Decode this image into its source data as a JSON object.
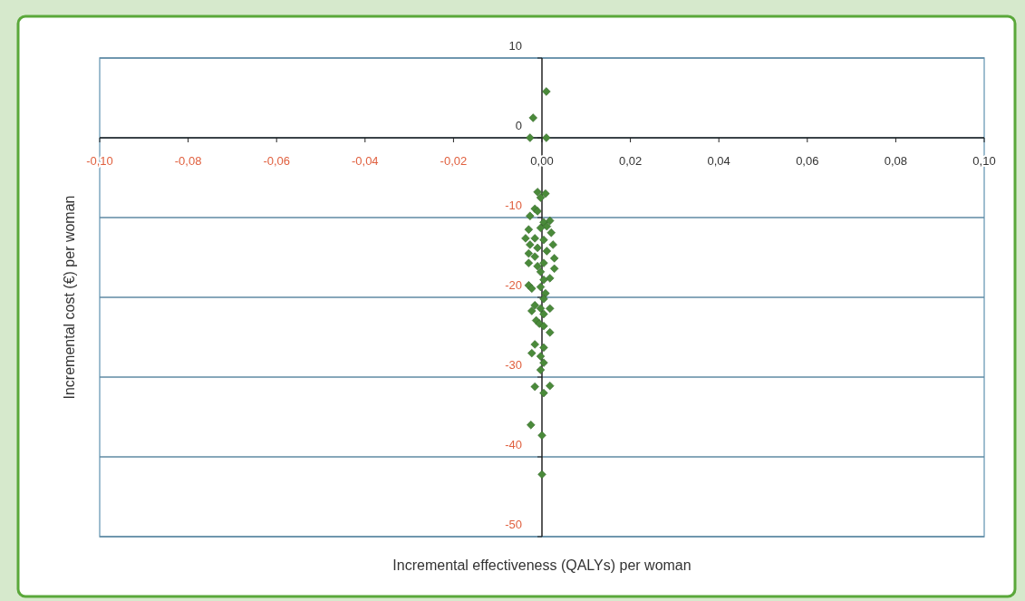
{
  "chart_data": {
    "type": "scatter",
    "xlabel": "Incremental effectiveness (QALYs) per woman",
    "ylabel": "Incremental cost (€) per woman",
    "xlim": [
      -0.1,
      0.1
    ],
    "xticks": [
      {
        "value": -0.1,
        "label": "-0,10"
      },
      {
        "value": -0.08,
        "label": "-0,08"
      },
      {
        "value": -0.06,
        "label": "-0,06"
      },
      {
        "value": -0.04,
        "label": "-0,04"
      },
      {
        "value": -0.02,
        "label": "-0,02"
      },
      {
        "value": 0,
        "label": "0,00"
      },
      {
        "value": 0.02,
        "label": "0,02"
      },
      {
        "value": 0.04,
        "label": "0,04"
      },
      {
        "value": 0.06,
        "label": "0,06"
      },
      {
        "value": 0.08,
        "label": "0,08"
      },
      {
        "value": 0.1,
        "label": "0,10"
      }
    ],
    "ylim": [
      -50,
      10
    ],
    "yticks": [
      10,
      0,
      -10,
      -20,
      -30,
      -40,
      -50
    ],
    "grid": "y",
    "marker": "diamond",
    "series": [
      {
        "color": "#4a8a3a",
        "x": [
          0.001,
          -0.002,
          -0.0027,
          0.001,
          -0.001,
          0.0008,
          -0.0003,
          -0.0016,
          -0.001,
          -0.0027,
          0.0018,
          0.0004,
          0.0011,
          -0.0003,
          -0.003,
          0.0021,
          -0.0037,
          -0.0016,
          0.0004,
          0.0025,
          -0.0027,
          -0.001,
          0.0011,
          -0.003,
          -0.0016,
          0.0028,
          0.0004,
          -0.003,
          -0.001,
          0.0028,
          -0.0003,
          0.0018,
          0.0004,
          -0.003,
          -0.0003,
          0.0008,
          0.0004,
          -0.0016,
          -0.0003,
          -0.0023,
          0.0004,
          0.0018,
          -0.0013,
          -0.0006,
          0.0004,
          0.0018,
          -0.0016,
          0.0004,
          -0.0023,
          -0.0003,
          0.0004,
          -0.0003,
          -0.0016,
          0.0018,
          0.0004,
          -0.0025,
          0,
          0,
          -0.0023
        ],
        "values": [
          5.8,
          2.5,
          0,
          0,
          -6.8,
          -7.0,
          -7.5,
          -8.9,
          -9.2,
          -9.8,
          -10.4,
          -10.6,
          -11.1,
          -11.3,
          -11.5,
          -11.9,
          -12.6,
          -12.6,
          -12.8,
          -13.4,
          -13.4,
          -13.8,
          -14.2,
          -14.5,
          -14.9,
          -15.1,
          -15.7,
          -15.7,
          -16.1,
          -16.4,
          -16.8,
          -17.6,
          -17.8,
          -18.5,
          -18.7,
          -19.5,
          -20.2,
          -21.0,
          -21.4,
          -21.7,
          -22.1,
          -21.4,
          -22.9,
          -23.3,
          -23.6,
          -24.4,
          -25.9,
          -26.3,
          -27.0,
          -27.4,
          -28.2,
          -29.1,
          -31.2,
          -31.1,
          -32.0,
          -36,
          -37.3,
          -42.2,
          -18.9
        ]
      }
    ]
  }
}
